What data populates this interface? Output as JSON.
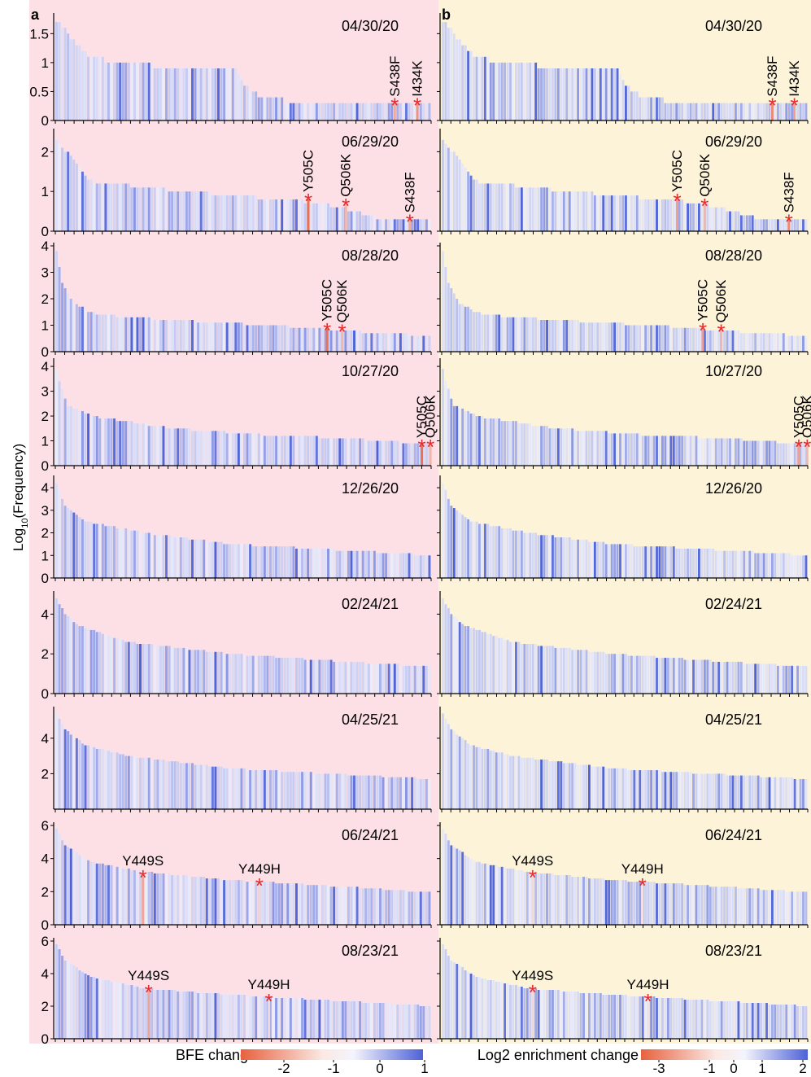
{
  "figure": {
    "y_axis_title": "Log",
    "y_axis_title_sub": "10",
    "y_axis_title_suffix": "(Frequency)"
  },
  "colors": {
    "panel_a_bg": "#fde0e6",
    "panel_b_bg": "#fdf3d9",
    "bar_pale": "#e8ecfb",
    "bar_blue": "#4d62d8",
    "bar_red": "#e8613f",
    "bar_orange": "#f5b79c",
    "star": "#e8282a"
  },
  "chart_data": [
    {
      "id": "a",
      "label": "a",
      "type": "bar",
      "colorbar": {
        "title": "BFE change",
        "ticks": [
          "-2",
          "-1",
          "0",
          "1"
        ],
        "range": [
          -2.5,
          1
        ]
      },
      "rows": [
        {
          "date": "04/30/20",
          "ylim": [
            0,
            1.8
          ],
          "yticks": [
            "0",
            "0.5",
            "1",
            "1.5"
          ],
          "ytick_values": [
            0,
            0.5,
            1,
            1.5
          ],
          "n_bars": 130,
          "profile": [
            [
              0,
              1.72
            ],
            [
              8,
              1.28
            ],
            [
              12,
              1.08
            ],
            [
              38,
              0.92
            ],
            [
              62,
              0.88
            ],
            [
              67,
              0.48
            ],
            [
              85,
              0.28
            ],
            [
              130,
              0.28
            ]
          ],
          "mutations": [
            {
              "name": "S438F",
              "pos": 0.9,
              "value": 0.3,
              "bfe": -1.2
            },
            {
              "name": "I434K",
              "pos": 0.96,
              "value": 0.3,
              "bfe": -1.6
            }
          ]
        },
        {
          "date": "06/29/20",
          "ylim": [
            0,
            2.5
          ],
          "yticks": [
            "0",
            "1",
            "2"
          ],
          "ytick_values": [
            0,
            1,
            2
          ],
          "n_bars": 130,
          "profile": [
            [
              0,
              2.3
            ],
            [
              12,
              1.25
            ],
            [
              45,
              1.0
            ],
            [
              78,
              0.8
            ],
            [
              92,
              0.7
            ],
            [
              103,
              0.5
            ],
            [
              113,
              0.3
            ],
            [
              130,
              0.3
            ]
          ],
          "mutations": [
            {
              "name": "Y505C",
              "pos": 0.67,
              "value": 0.82,
              "bfe": -2.2
            },
            {
              "name": "Q506K",
              "pos": 0.77,
              "value": 0.7,
              "bfe": -1.0
            },
            {
              "name": "S438F",
              "pos": 0.94,
              "value": 0.3,
              "bfe": -1.2
            }
          ]
        },
        {
          "date": "08/28/20",
          "ylim": [
            0,
            4
          ],
          "yticks": [
            "0",
            "1",
            "2",
            "3",
            "4"
          ],
          "ytick_values": [
            0,
            1,
            2,
            3,
            4
          ],
          "n_bars": 130,
          "profile": [
            [
              0,
              3.8
            ],
            [
              2,
              2.6
            ],
            [
              6,
              1.8
            ],
            [
              14,
              1.4
            ],
            [
              40,
              1.2
            ],
            [
              80,
              0.95
            ],
            [
              105,
              0.75
            ],
            [
              130,
              0.6
            ]
          ],
          "mutations": [
            {
              "name": "Y505C",
              "pos": 0.72,
              "value": 0.9,
              "bfe": -2.2
            },
            {
              "name": "Q506K",
              "pos": 0.76,
              "value": 0.85,
              "bfe": -1.0
            }
          ]
        },
        {
          "date": "10/27/20",
          "ylim": [
            0,
            4.2
          ],
          "yticks": [
            "0",
            "1",
            "2",
            "3",
            "4"
          ],
          "ytick_values": [
            0,
            1,
            2,
            3,
            4
          ],
          "n_bars": 130,
          "profile": [
            [
              0,
              3.9
            ],
            [
              1,
              3.4
            ],
            [
              4,
              2.4
            ],
            [
              12,
              2.0
            ],
            [
              40,
              1.5
            ],
            [
              70,
              1.25
            ],
            [
              100,
              1.1
            ],
            [
              125,
              0.9
            ],
            [
              130,
              0.85
            ]
          ],
          "mutations": [
            {
              "name": "Y505C",
              "pos": 0.972,
              "value": 0.85,
              "bfe": -2.2
            },
            {
              "name": "Q506K",
              "pos": 0.995,
              "value": 0.85,
              "bfe": -1.0
            }
          ]
        },
        {
          "date": "12/26/20",
          "ylim": [
            0,
            4.4
          ],
          "yticks": [
            "0",
            "1",
            "2",
            "3",
            "4"
          ],
          "ytick_values": [
            0,
            1,
            2,
            3,
            4
          ],
          "n_bars": 130,
          "profile": [
            [
              0,
              4.2
            ],
            [
              3,
              3.2
            ],
            [
              10,
              2.5
            ],
            [
              30,
              2.0
            ],
            [
              60,
              1.5
            ],
            [
              90,
              1.3
            ],
            [
              130,
              1.0
            ]
          ],
          "mutations": []
        },
        {
          "date": "02/24/21",
          "ylim": [
            0,
            5
          ],
          "yticks": [
            "0",
            "2",
            "4"
          ],
          "ytick_values": [
            0,
            2,
            4
          ],
          "n_bars": 130,
          "profile": [
            [
              0,
              4.8
            ],
            [
              3,
              4.0
            ],
            [
              8,
              3.4
            ],
            [
              25,
              2.6
            ],
            [
              60,
              2.0
            ],
            [
              100,
              1.6
            ],
            [
              130,
              1.35
            ]
          ],
          "mutations": []
        },
        {
          "date": "04/25/21",
          "ylim": [
            0,
            5.6
          ],
          "yticks": [
            "2",
            "4"
          ],
          "ytick_values": [
            2,
            4
          ],
          "n_bars": 130,
          "profile": [
            [
              0,
              5.4
            ],
            [
              3,
              4.5
            ],
            [
              10,
              3.6
            ],
            [
              25,
              3.0
            ],
            [
              60,
              2.3
            ],
            [
              100,
              1.95
            ],
            [
              130,
              1.7
            ]
          ],
          "mutations": []
        },
        {
          "date": "06/24/21",
          "ylim": [
            0,
            6
          ],
          "yticks": [
            "0",
            "2",
            "4",
            "6"
          ],
          "ytick_values": [
            0,
            2,
            4,
            6
          ],
          "n_bars": 130,
          "profile": [
            [
              0,
              5.8
            ],
            [
              3,
              4.8
            ],
            [
              12,
              3.8
            ],
            [
              30,
              3.2
            ],
            [
              60,
              2.7
            ],
            [
              100,
              2.3
            ],
            [
              130,
              1.95
            ]
          ],
          "mutations": [
            {
              "name": "Y449S",
              "pos": 0.23,
              "value": 3.0,
              "bfe": -1.3
            },
            {
              "name": "Y449H",
              "pos": 0.54,
              "value": 2.5,
              "bfe": -0.5
            }
          ]
        },
        {
          "date": "08/23/21",
          "ylim": [
            0,
            6
          ],
          "yticks": [
            "0",
            "2",
            "4",
            "6"
          ],
          "ytick_values": [
            0,
            2,
            4,
            6
          ],
          "n_bars": 130,
          "profile": [
            [
              0,
              5.8
            ],
            [
              3,
              4.8
            ],
            [
              12,
              3.8
            ],
            [
              30,
              3.1
            ],
            [
              60,
              2.7
            ],
            [
              100,
              2.3
            ],
            [
              130,
              2.0
            ]
          ],
          "mutations": [
            {
              "name": "Y449S",
              "pos": 0.245,
              "value": 3.0,
              "bfe": -1.3
            },
            {
              "name": "Y449H",
              "pos": 0.565,
              "value": 2.45,
              "bfe": -0.5
            }
          ]
        }
      ]
    },
    {
      "id": "b",
      "label": "b",
      "type": "bar",
      "colorbar": {
        "title": "Log2 enrichment change",
        "ticks": [
          "-3",
          "-1",
          "0",
          "1",
          "2"
        ],
        "range": [
          -3.5,
          2
        ]
      },
      "rows": [
        {
          "date": "04/30/20",
          "ylim": [
            0,
            1.8
          ],
          "n_bars": 130,
          "profile": [
            [
              0,
              1.72
            ],
            [
              8,
              1.28
            ],
            [
              12,
              1.08
            ],
            [
              38,
              0.92
            ],
            [
              62,
              0.88
            ],
            [
              67,
              0.48
            ],
            [
              85,
              0.28
            ],
            [
              130,
              0.28
            ]
          ],
          "mutations": [
            {
              "name": "S438F",
              "pos": 0.9,
              "value": 0.3,
              "bfe": -2.5
            },
            {
              "name": "I434K",
              "pos": 0.96,
              "value": 0.3,
              "bfe": -2.0
            }
          ]
        },
        {
          "date": "06/29/20",
          "ylim": [
            0,
            2.5
          ],
          "n_bars": 130,
          "profile": [
            [
              0,
              2.3
            ],
            [
              12,
              1.25
            ],
            [
              45,
              1.0
            ],
            [
              78,
              0.8
            ],
            [
              92,
              0.7
            ],
            [
              103,
              0.5
            ],
            [
              113,
              0.3
            ],
            [
              130,
              0.3
            ]
          ],
          "mutations": [
            {
              "name": "Y505C",
              "pos": 0.64,
              "value": 0.82,
              "bfe": -2.0
            },
            {
              "name": "Q506K",
              "pos": 0.715,
              "value": 0.7,
              "bfe": -1.4
            },
            {
              "name": "S438F",
              "pos": 0.945,
              "value": 0.3,
              "bfe": -2.5
            }
          ]
        },
        {
          "date": "08/28/20",
          "ylim": [
            0,
            4
          ],
          "n_bars": 130,
          "profile": [
            [
              0,
              3.8
            ],
            [
              2,
              2.6
            ],
            [
              6,
              1.8
            ],
            [
              14,
              1.4
            ],
            [
              40,
              1.2
            ],
            [
              80,
              0.95
            ],
            [
              105,
              0.75
            ],
            [
              130,
              0.6
            ]
          ],
          "mutations": [
            {
              "name": "Y505C",
              "pos": 0.71,
              "value": 0.9,
              "bfe": -2.0
            },
            {
              "name": "Q506K",
              "pos": 0.76,
              "value": 0.85,
              "bfe": -1.4
            }
          ]
        },
        {
          "date": "10/27/20",
          "ylim": [
            0,
            4.2
          ],
          "n_bars": 130,
          "profile": [
            [
              0,
              3.9
            ],
            [
              1,
              3.4
            ],
            [
              4,
              2.4
            ],
            [
              12,
              2.0
            ],
            [
              40,
              1.5
            ],
            [
              70,
              1.25
            ],
            [
              100,
              1.1
            ],
            [
              125,
              0.9
            ],
            [
              130,
              0.85
            ]
          ],
          "mutations": [
            {
              "name": "Y505C",
              "pos": 0.972,
              "value": 0.85,
              "bfe": -2.0
            },
            {
              "name": "Q506K",
              "pos": 0.995,
              "value": 0.85,
              "bfe": -1.4
            }
          ]
        },
        {
          "date": "12/26/20",
          "ylim": [
            0,
            4.4
          ],
          "n_bars": 130,
          "profile": [
            [
              0,
              4.2
            ],
            [
              3,
              3.2
            ],
            [
              10,
              2.5
            ],
            [
              30,
              2.0
            ],
            [
              60,
              1.5
            ],
            [
              90,
              1.3
            ],
            [
              130,
              1.0
            ]
          ],
          "mutations": []
        },
        {
          "date": "02/24/21",
          "ylim": [
            0,
            5
          ],
          "n_bars": 130,
          "profile": [
            [
              0,
              4.8
            ],
            [
              3,
              4.0
            ],
            [
              8,
              3.4
            ],
            [
              25,
              2.6
            ],
            [
              60,
              2.0
            ],
            [
              100,
              1.6
            ],
            [
              130,
              1.35
            ]
          ],
          "mutations": []
        },
        {
          "date": "04/25/21",
          "ylim": [
            0,
            5.6
          ],
          "n_bars": 130,
          "profile": [
            [
              0,
              5.4
            ],
            [
              3,
              4.5
            ],
            [
              10,
              3.6
            ],
            [
              25,
              3.0
            ],
            [
              60,
              2.3
            ],
            [
              100,
              1.95
            ],
            [
              130,
              1.7
            ]
          ],
          "mutations": []
        },
        {
          "date": "06/24/21",
          "ylim": [
            0,
            6
          ],
          "n_bars": 130,
          "profile": [
            [
              0,
              5.8
            ],
            [
              3,
              4.8
            ],
            [
              12,
              3.8
            ],
            [
              30,
              3.2
            ],
            [
              60,
              2.7
            ],
            [
              100,
              2.3
            ],
            [
              130,
              1.95
            ]
          ],
          "mutations": [
            {
              "name": "Y449S",
              "pos": 0.245,
              "value": 3.0,
              "bfe": -0.6
            },
            {
              "name": "Y449H",
              "pos": 0.545,
              "value": 2.5,
              "bfe": -0.4
            }
          ]
        },
        {
          "date": "08/23/21",
          "ylim": [
            0,
            6
          ],
          "n_bars": 130,
          "profile": [
            [
              0,
              5.8
            ],
            [
              3,
              4.8
            ],
            [
              12,
              3.8
            ],
            [
              30,
              3.1
            ],
            [
              60,
              2.7
            ],
            [
              100,
              2.3
            ],
            [
              130,
              2.0
            ]
          ],
          "mutations": [
            {
              "name": "Y449S",
              "pos": 0.245,
              "value": 3.0,
              "bfe": -0.6
            },
            {
              "name": "Y449H",
              "pos": 0.56,
              "value": 2.45,
              "bfe": -0.4
            }
          ]
        }
      ]
    }
  ]
}
